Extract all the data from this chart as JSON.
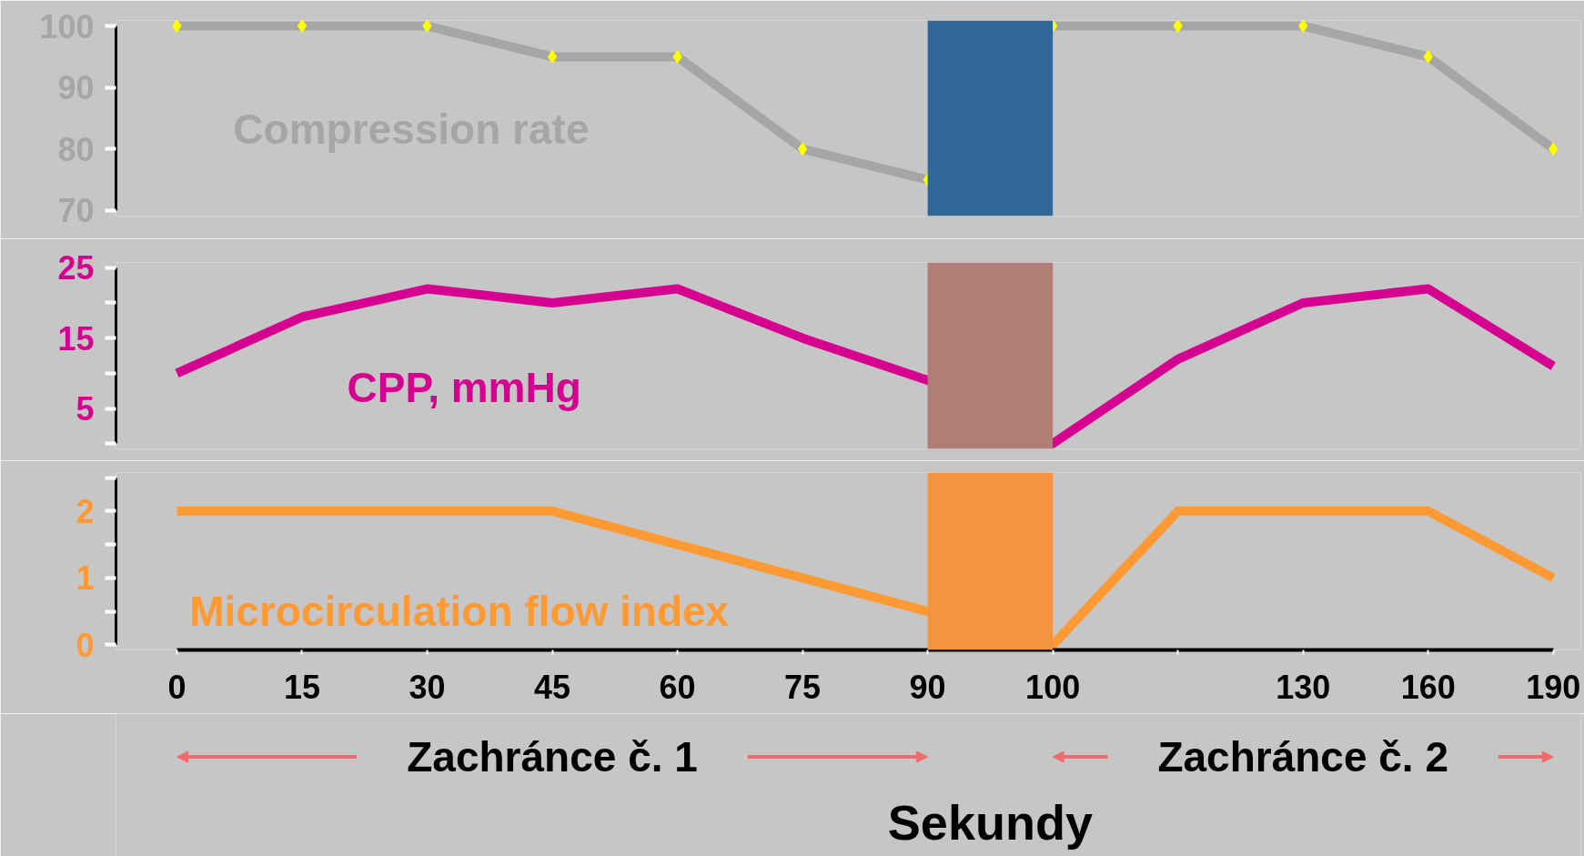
{
  "chart_data": [
    {
      "type": "line",
      "categories": [
        "0",
        "15",
        "30",
        "45",
        "60",
        "75",
        "90",
        "100",
        null,
        "130",
        "160",
        "190"
      ],
      "series": [
        {
          "name": "Compression rate",
          "color": "#a6a6a6",
          "values": [
            100,
            100,
            100,
            95,
            95,
            80,
            75,
            100,
            100,
            100,
            95,
            80
          ]
        }
      ],
      "ylim": [
        70,
        100
      ],
      "yticks": [
        100,
        90,
        80,
        70
      ],
      "marker": "diamond",
      "tick_labels": "y",
      "bands": [
        {
          "axis": "x",
          "from": "90",
          "to": "100",
          "color": "#2f6796"
        }
      ]
    },
    {
      "type": "line",
      "categories": [
        "0",
        "15",
        "30",
        "45",
        "60",
        "75",
        "90",
        "100",
        null,
        "130",
        "160",
        "190"
      ],
      "series": [
        {
          "name": "CPP, mmHg",
          "color": "#d5008f",
          "values": [
            10,
            18,
            22,
            20,
            22,
            15,
            9,
            0,
            12,
            20,
            22,
            11
          ]
        }
      ],
      "ylim": [
        0,
        25
      ],
      "yticks": [
        25,
        {
          "value": 20,
          "label": null
        },
        15,
        {
          "value": 10,
          "label": null
        },
        5,
        {
          "value": 0,
          "label": null
        }
      ],
      "tick_labels": "y",
      "bands": [
        {
          "axis": "x",
          "from": "90",
          "to": "100",
          "color": "#b07e74"
        }
      ]
    },
    {
      "type": "line",
      "categories": [
        "0",
        "15",
        "30",
        "45",
        "60",
        "75",
        "90",
        "100",
        null,
        "130",
        "160",
        "190"
      ],
      "series": [
        {
          "name": "Microcirculation flow index",
          "color": "#ff9933",
          "values": [
            2,
            2,
            2,
            2,
            1.5,
            1,
            0.5,
            0,
            2,
            2,
            2,
            1
          ]
        }
      ],
      "ylim": [
        0,
        2.5
      ],
      "yticks": [
        {
          "value": 2.5,
          "label": null
        },
        2,
        {
          "value": 1.5,
          "label": null
        },
        1,
        {
          "value": 0.5,
          "label": null
        },
        0
      ],
      "xlabel": "Sekundy",
      "annotations": [
        "Zachránce č. 1",
        "Zachránce č. 2"
      ],
      "bands": [
        {
          "axis": "x",
          "from": "90",
          "to": "100",
          "color": "#f39443"
        }
      ]
    }
  ]
}
